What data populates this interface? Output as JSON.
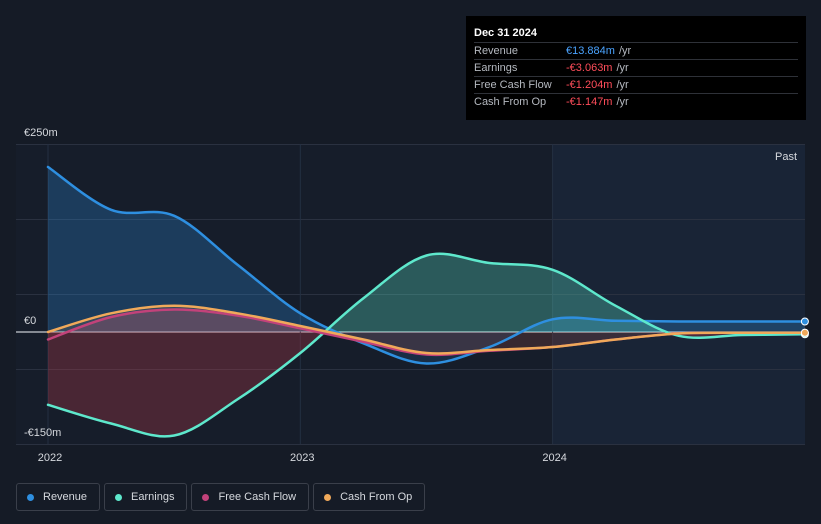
{
  "tooltip": {
    "date": "Dec 31 2024",
    "rows": [
      {
        "label": "Revenue",
        "value": "€13.884m",
        "unit": "/yr"
      },
      {
        "label": "Earnings",
        "value": "-€3.063m",
        "unit": "/yr"
      },
      {
        "label": "Free Cash Flow",
        "value": "-€1.204m",
        "unit": "/yr"
      },
      {
        "label": "Cash From Op",
        "value": "-€1.147m",
        "unit": "/yr"
      }
    ]
  },
  "legend": [
    {
      "label": "Revenue",
      "color": "#2e8fe0"
    },
    {
      "label": "Earnings",
      "color": "#5ee8cc"
    },
    {
      "label": "Free Cash Flow",
      "color": "#c2427a"
    },
    {
      "label": "Cash From Op",
      "color": "#f0a95a"
    }
  ],
  "chart_data": {
    "type": "area",
    "y_tick_labels": [
      "€250m",
      "€0",
      "-€150m"
    ],
    "y_ticks": [
      250,
      0,
      -150
    ],
    "x_tick_labels": [
      "2022",
      "2023",
      "2024"
    ],
    "x_ticks": [
      2022.0,
      2023.0,
      2024.0
    ],
    "xlim": [
      2022.0,
      2025.0
    ],
    "ylim": [
      -150,
      250
    ],
    "past_label": "Past",
    "grid": true,
    "series": [
      {
        "name": "Revenue",
        "color": "#2e8fe0",
        "x": [
          2022.0,
          2022.25,
          2022.5,
          2022.75,
          2023.0,
          2023.25,
          2023.5,
          2023.75,
          2024.0,
          2024.25,
          2024.5,
          2024.75,
          2025.0
        ],
        "y": [
          220,
          163,
          155,
          90,
          25,
          -15,
          -42,
          -20,
          17,
          15,
          14,
          14,
          14
        ]
      },
      {
        "name": "Earnings",
        "color": "#5ee8cc",
        "x": [
          2022.0,
          2022.25,
          2022.5,
          2022.75,
          2023.0,
          2023.25,
          2023.5,
          2023.75,
          2024.0,
          2024.25,
          2024.5,
          2024.75,
          2025.0
        ],
        "y": [
          -97,
          -122,
          -138,
          -90,
          -28,
          45,
          102,
          92,
          83,
          35,
          -5,
          -4,
          -3
        ]
      },
      {
        "name": "Free Cash Flow",
        "color": "#c2427a",
        "x": [
          2022.0,
          2022.25,
          2022.5,
          2022.75,
          2023.0,
          2023.25,
          2023.5,
          2023.75,
          2024.0,
          2024.25,
          2024.5,
          2024.75,
          2025.0
        ],
        "y": [
          -10,
          20,
          30,
          22,
          5,
          -13,
          -30,
          -25,
          -20,
          -10,
          -2,
          -1,
          -1
        ]
      },
      {
        "name": "Cash From Op",
        "color": "#f0a95a",
        "x": [
          2022.0,
          2022.25,
          2022.5,
          2022.75,
          2023.0,
          2023.25,
          2023.5,
          2023.75,
          2024.0,
          2024.25,
          2024.5,
          2024.75,
          2025.0
        ],
        "y": [
          0,
          25,
          35,
          25,
          8,
          -10,
          -28,
          -24,
          -20,
          -10,
          -2,
          -1,
          -1
        ]
      }
    ]
  }
}
